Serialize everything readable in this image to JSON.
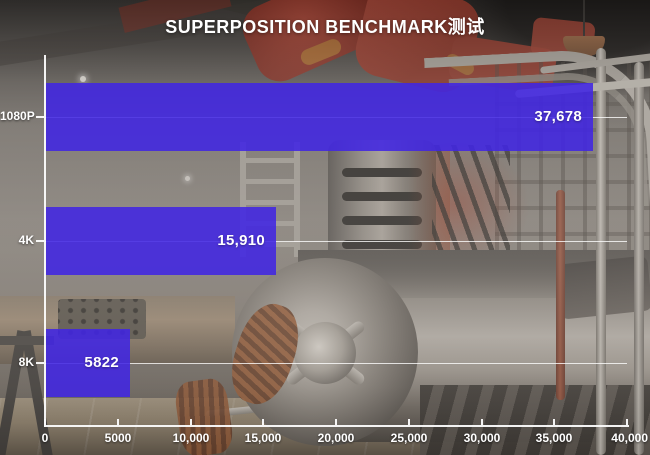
{
  "colors": {
    "bar": "#4126E3",
    "axis": "#FCFCFC",
    "text": "#FFFFFF"
  },
  "chart_data": {
    "type": "bar",
    "orientation": "horizontal",
    "title": "SUPERPOSITION BENCHMARK测试",
    "categories": [
      "1080P",
      "4K",
      "8K"
    ],
    "values": [
      37678,
      15910,
      5822
    ],
    "value_labels": [
      "37,678",
      "15,910",
      "5822"
    ],
    "xlabel": "",
    "ylabel": "",
    "xlim": [
      0,
      40000
    ],
    "x_ticks": [
      0,
      5000,
      10000,
      15000,
      20000,
      25000,
      30000,
      35000,
      40000
    ],
    "x_tick_labels": [
      "0",
      "5000",
      "10,000",
      "15,000",
      "20,000",
      "25,000",
      "30,000",
      "35,000",
      "40,000"
    ],
    "legend": "none",
    "grid": "horizontal center line per category, white"
  }
}
